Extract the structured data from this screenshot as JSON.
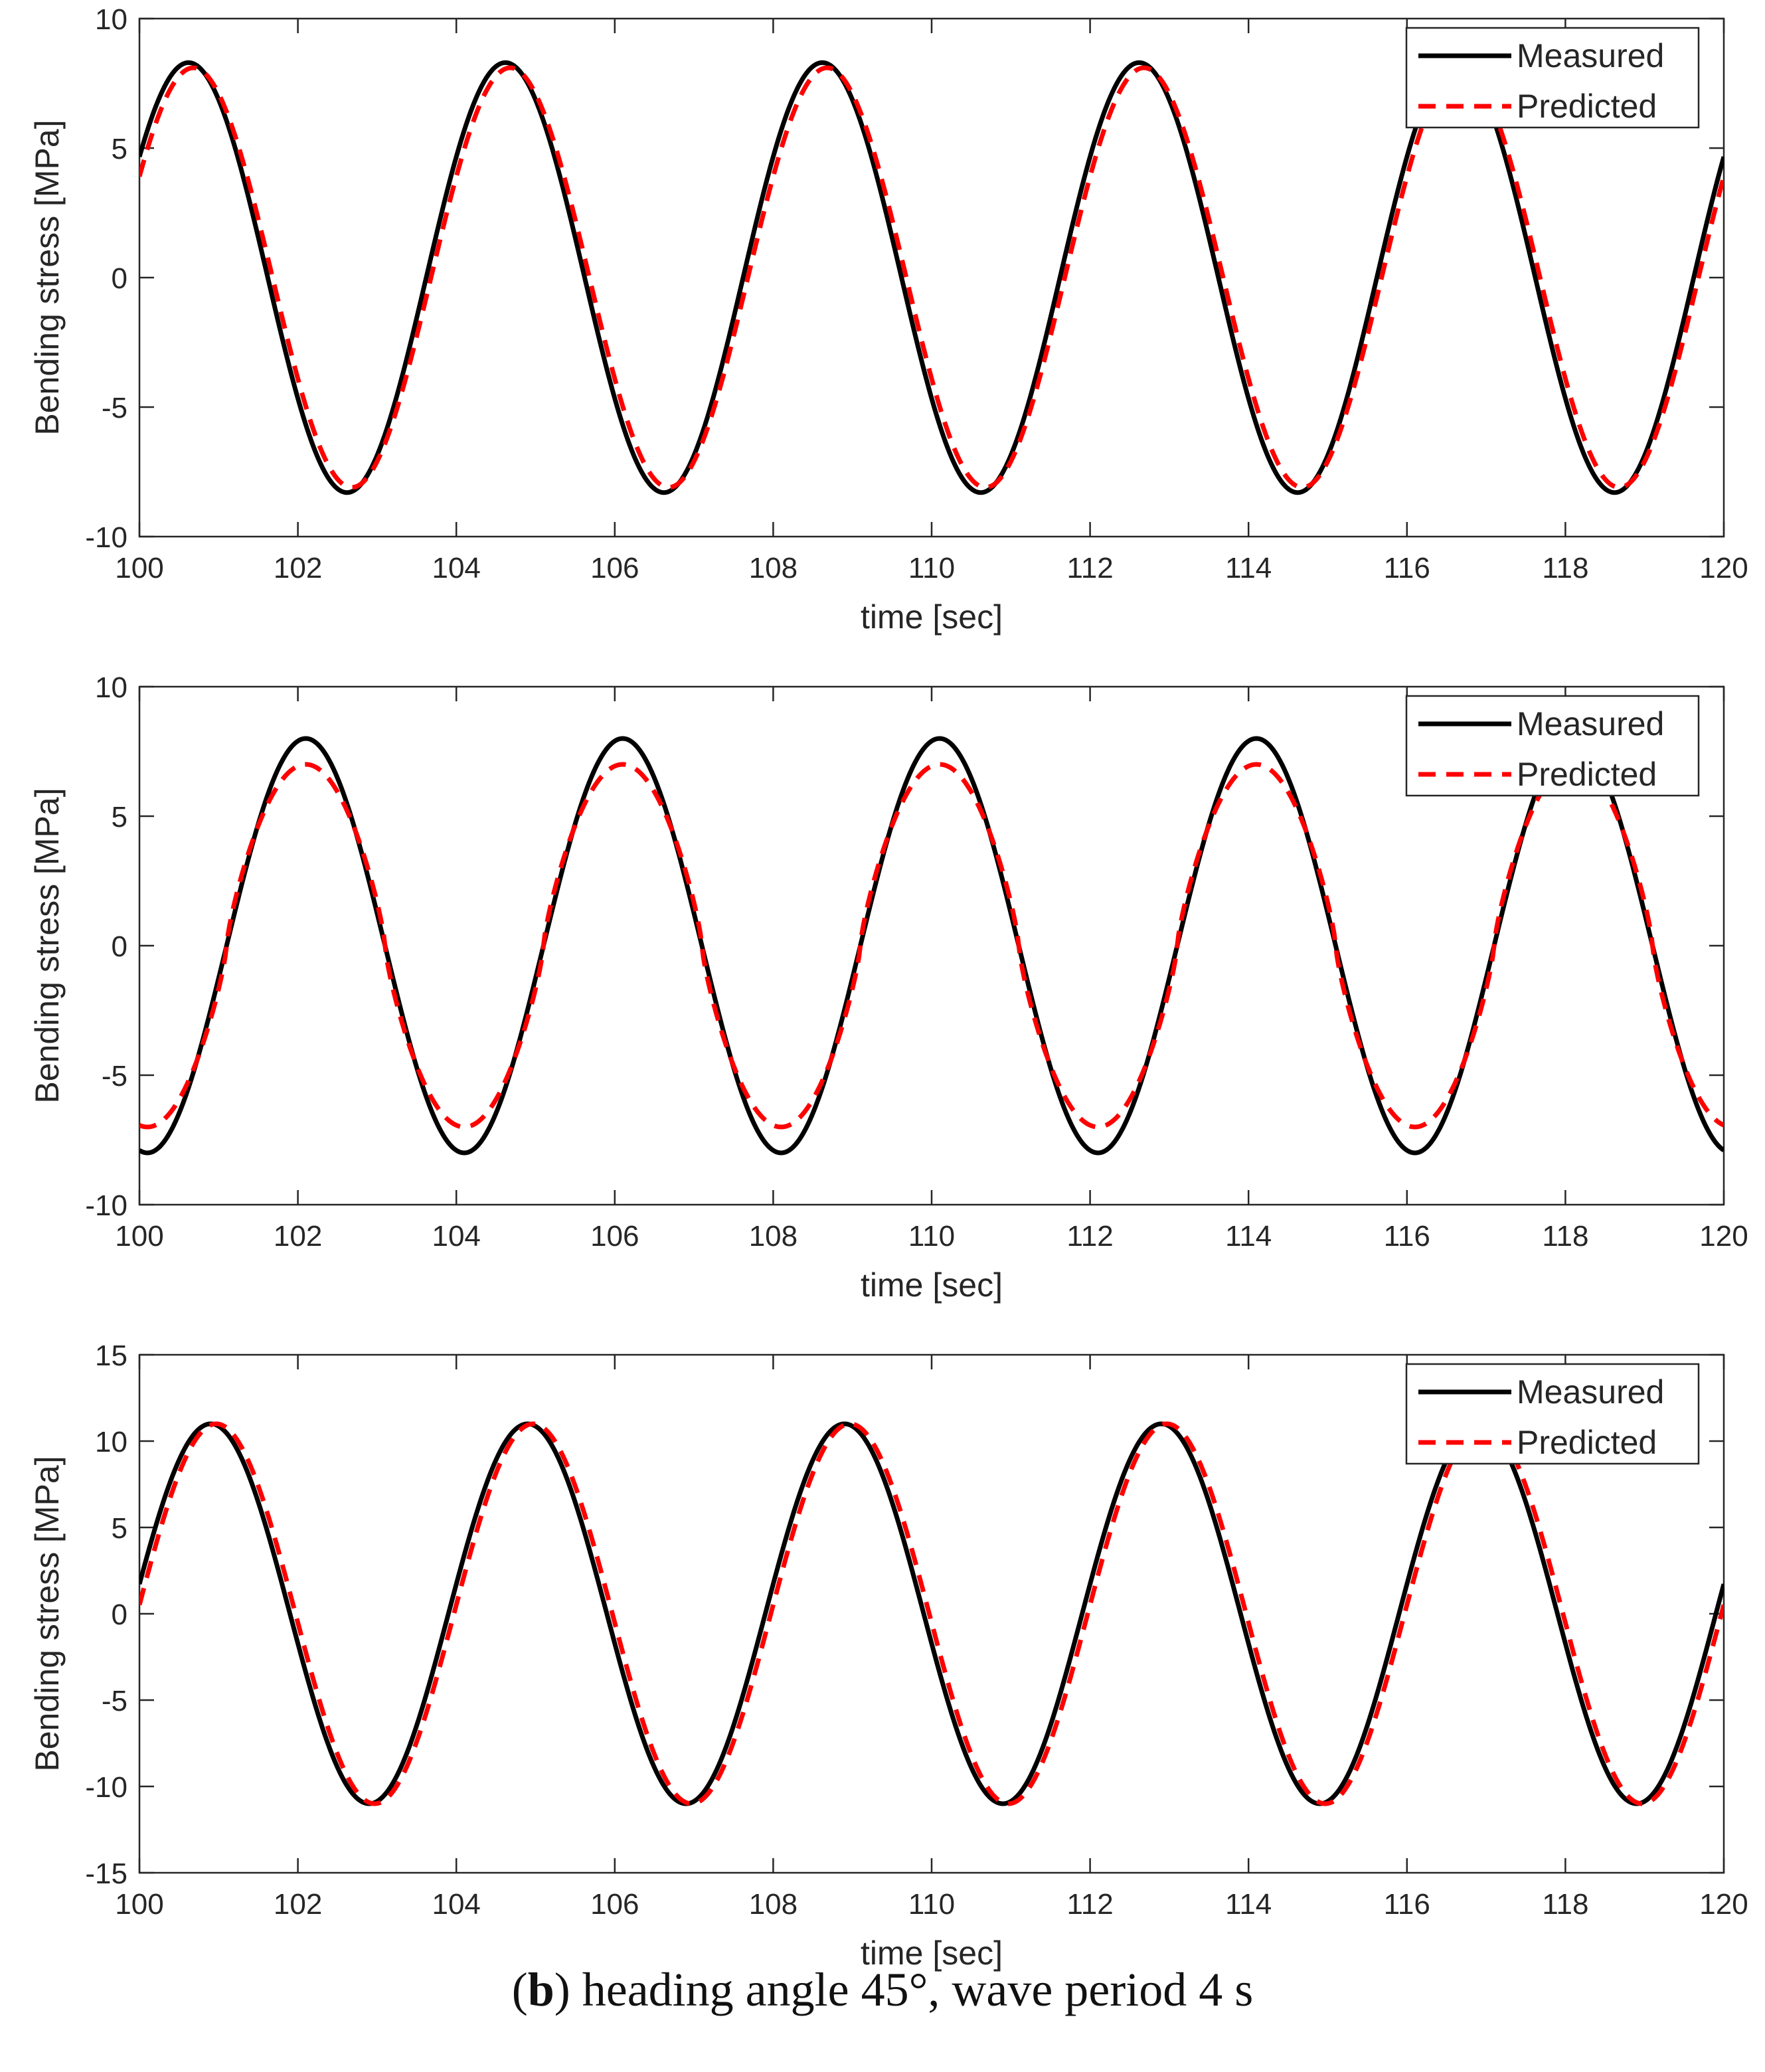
{
  "caption": {
    "label": "b",
    "text": " heading angle 45°, wave period 4 s"
  },
  "colors": {
    "measured": "#000000",
    "predicted": "#ff0000",
    "axis": "#262626"
  },
  "chart_data": [
    {
      "type": "line",
      "title": "",
      "xlabel": "time [sec]",
      "ylabel": "Bending stress [MPa]",
      "xlim": [
        100,
        120
      ],
      "ylim": [
        -10,
        10
      ],
      "xticks": [
        100,
        102,
        104,
        106,
        108,
        110,
        112,
        114,
        116,
        118,
        120
      ],
      "yticks": [
        -10,
        -5,
        0,
        5,
        10
      ],
      "grid": false,
      "legend": {
        "position": "top-right",
        "entries": [
          "Measured",
          "Predicted"
        ]
      },
      "period": 4,
      "series": [
        {
          "name": "Measured",
          "style": "solid",
          "amplitude": 8.3,
          "peak_time": 100.62,
          "flat": 0
        },
        {
          "name": "Predicted",
          "style": "dashed",
          "amplitude": 8.1,
          "peak_time": 100.68,
          "flat": 0
        }
      ]
    },
    {
      "type": "line",
      "title": "",
      "xlabel": "time [sec]",
      "ylabel": "Bending stress [MPa]",
      "xlim": [
        100,
        120
      ],
      "ylim": [
        -10,
        10
      ],
      "xticks": [
        100,
        102,
        104,
        106,
        108,
        110,
        112,
        114,
        116,
        118,
        120
      ],
      "yticks": [
        -10,
        -5,
        0,
        5,
        10
      ],
      "grid": false,
      "legend": {
        "position": "top-right",
        "entries": [
          "Measured",
          "Predicted"
        ]
      },
      "period": 4,
      "series": [
        {
          "name": "Measured",
          "style": "solid",
          "amplitude": 8.0,
          "peak_time": 102.1,
          "flat": 0
        },
        {
          "name": "Predicted",
          "style": "dashed",
          "amplitude": 7.0,
          "peak_time": 102.1,
          "flat": 0.25
        }
      ]
    },
    {
      "type": "line",
      "title": "",
      "xlabel": "time [sec]",
      "ylabel": "Bending stress [MPa]",
      "xlim": [
        100,
        120
      ],
      "ylim": [
        -15,
        15
      ],
      "xticks": [
        100,
        102,
        104,
        106,
        108,
        110,
        112,
        114,
        116,
        118,
        120
      ],
      "yticks": [
        -15,
        -10,
        -5,
        0,
        5,
        10,
        15
      ],
      "grid": false,
      "legend": {
        "position": "top-right",
        "entries": [
          "Measured",
          "Predicted"
        ]
      },
      "period": 4,
      "series": [
        {
          "name": "Measured",
          "style": "solid",
          "amplitude": 11.0,
          "peak_time": 100.9,
          "flat": 0
        },
        {
          "name": "Predicted",
          "style": "dashed",
          "amplitude": 11.0,
          "peak_time": 100.97,
          "flat": 0
        }
      ]
    }
  ]
}
